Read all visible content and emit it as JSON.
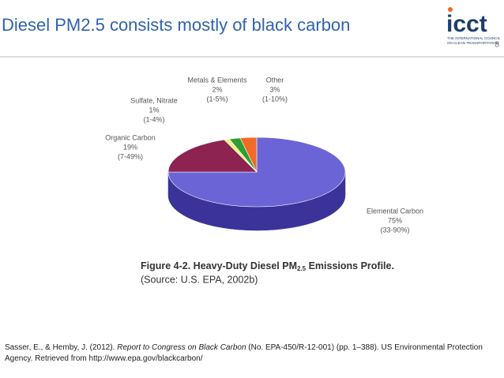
{
  "slide": {
    "title": "Diesel PM2.5 consists mostly of black carbon",
    "page_number": "8",
    "logo": {
      "name": "icct",
      "tagline": [
        "THE INTERNATIONAL COUNCIL",
        "ON CLEAN TRANSPORTATION"
      ]
    },
    "citation": {
      "before": "Sasser, E., & Hemby, J. (2012). ",
      "italic": "Report to Congress on Black Carbon",
      "after": " (No. EPA-450/R-12-001) (pp. 1–388). US Environmental Protection Agency. Retrieved from http://www.epa.gov/blackcarbon/"
    }
  },
  "chart_data": {
    "type": "pie",
    "caption": {
      "prefix": "Figure 4-2.  Heavy-Duty Diesel PM",
      "subscript": "2.5",
      "suffix": " Emissions Profile."
    },
    "source": "(Source: U.S. EPA, 2002b)",
    "categories": [
      "Elemental Carbon",
      "Organic Carbon",
      "Sulfate, Nitrate",
      "Metals & Elements",
      "Other"
    ],
    "values": [
      75,
      19,
      1,
      2,
      3
    ],
    "value_labels": [
      "75%",
      "19%",
      "1%",
      "2%",
      "3%"
    ],
    "ranges": [
      "(33-90%)",
      "(7-49%)",
      "(1-4%)",
      "(1-5%)",
      "(1-10%)"
    ],
    "colors": [
      "#6b64d6",
      "#8c2350",
      "#f4f07c",
      "#2f9d33",
      "#f26a25"
    ],
    "side_colors": [
      "#3b3399",
      "#5e1434",
      "#b8b34a",
      "#1d6b20",
      "#a8461a"
    ]
  }
}
